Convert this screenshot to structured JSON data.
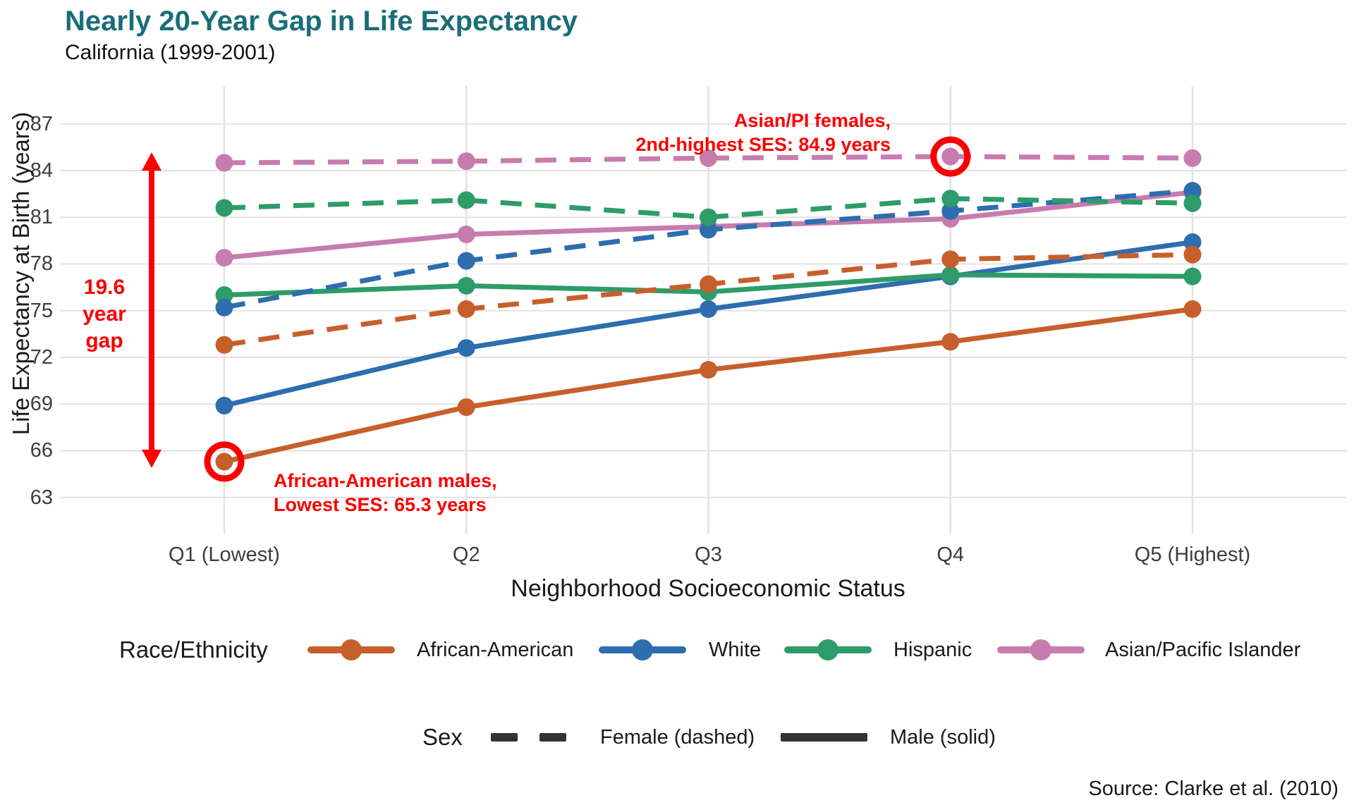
{
  "header": {
    "title": "Nearly 20-Year Gap in Life Expectancy",
    "subtitle": "California (1999-2001)"
  },
  "colors": {
    "title_teal": "#196E78",
    "annotation_red": "#FB0000",
    "grid": "#E2E2E2",
    "axis_text": "#3d3d3d",
    "sex_key_dark": "#333333"
  },
  "chart_data": {
    "type": "line",
    "title": "Nearly 20-Year Gap in Life Expectancy",
    "subtitle": "California (1999-2001)",
    "xlabel": "Neighborhood Socioeconomic Status",
    "ylabel": "Life Expectancy at Birth (years)",
    "categories": [
      "Q1 (Lowest)",
      "Q2",
      "Q3",
      "Q4",
      "Q5 (Highest)"
    ],
    "y_ticks": [
      63,
      66,
      69,
      72,
      75,
      78,
      81,
      84,
      87
    ],
    "ylim": [
      61.6,
      89.4
    ],
    "grid": true,
    "legend_position": "bottom",
    "series": [
      {
        "name": "African-American",
        "sex": "Male",
        "style": "solid",
        "color": "#C75F2C",
        "values": [
          65.3,
          68.8,
          71.2,
          73.0,
          75.1
        ]
      },
      {
        "name": "White",
        "sex": "Male",
        "style": "solid",
        "color": "#2E6DAE",
        "values": [
          68.9,
          72.6,
          75.1,
          77.2,
          79.4
        ]
      },
      {
        "name": "Hispanic",
        "sex": "Male",
        "style": "solid",
        "color": "#2E9C68",
        "values": [
          76.0,
          76.6,
          76.2,
          77.3,
          77.2
        ]
      },
      {
        "name": "Asian/Pacific Islander",
        "sex": "Male",
        "style": "solid",
        "color": "#C77CAE",
        "values": [
          78.4,
          79.9,
          80.4,
          80.9,
          82.6
        ]
      },
      {
        "name": "African-American",
        "sex": "Female",
        "style": "dashed",
        "color": "#C75F2C",
        "values": [
          72.8,
          75.1,
          76.7,
          78.3,
          78.6
        ]
      },
      {
        "name": "White",
        "sex": "Female",
        "style": "dashed",
        "color": "#2E6DAE",
        "values": [
          75.2,
          78.2,
          80.2,
          81.4,
          82.7
        ]
      },
      {
        "name": "Hispanic",
        "sex": "Female",
        "style": "dashed",
        "color": "#2E9C68",
        "values": [
          81.6,
          82.1,
          81.0,
          82.2,
          81.9
        ]
      },
      {
        "name": "Asian/Pacific Islander",
        "sex": "Female",
        "style": "dashed",
        "color": "#C77CAE",
        "values": [
          84.5,
          84.6,
          84.8,
          84.9,
          84.8
        ]
      }
    ],
    "annotations": {
      "gap_label": {
        "lines": [
          "19.6",
          "year",
          "gap"
        ]
      },
      "gap_arrow": {
        "from_value": 65.3,
        "to_value": 84.9
      },
      "top_callout": {
        "lines": [
          "Asian/PI females,",
          "2nd-highest SES: 84.9 years"
        ],
        "points_to": {
          "series": "Asian/Pacific Islander Female",
          "category": "Q4",
          "value": 84.9
        }
      },
      "bottom_callout": {
        "lines": [
          "African-American males,",
          "Lowest SES: 65.3 years"
        ],
        "points_to": {
          "series": "African-American Male",
          "category": "Q1 (Lowest)",
          "value": 65.3
        }
      }
    }
  },
  "legend": {
    "race_title": "Race/Ethnicity",
    "races": [
      {
        "label": "African-American",
        "color": "#C75F2C"
      },
      {
        "label": "White",
        "color": "#2E6DAE"
      },
      {
        "label": "Hispanic",
        "color": "#2E9C68"
      },
      {
        "label": "Asian/Pacific Islander",
        "color": "#C77CAE"
      }
    ],
    "sex_title": "Sex",
    "sex_items": [
      {
        "label": "Female (dashed)",
        "style": "dashed"
      },
      {
        "label": "Male (solid)",
        "style": "solid"
      }
    ]
  },
  "source": "Source: Clarke et al. (2010)"
}
